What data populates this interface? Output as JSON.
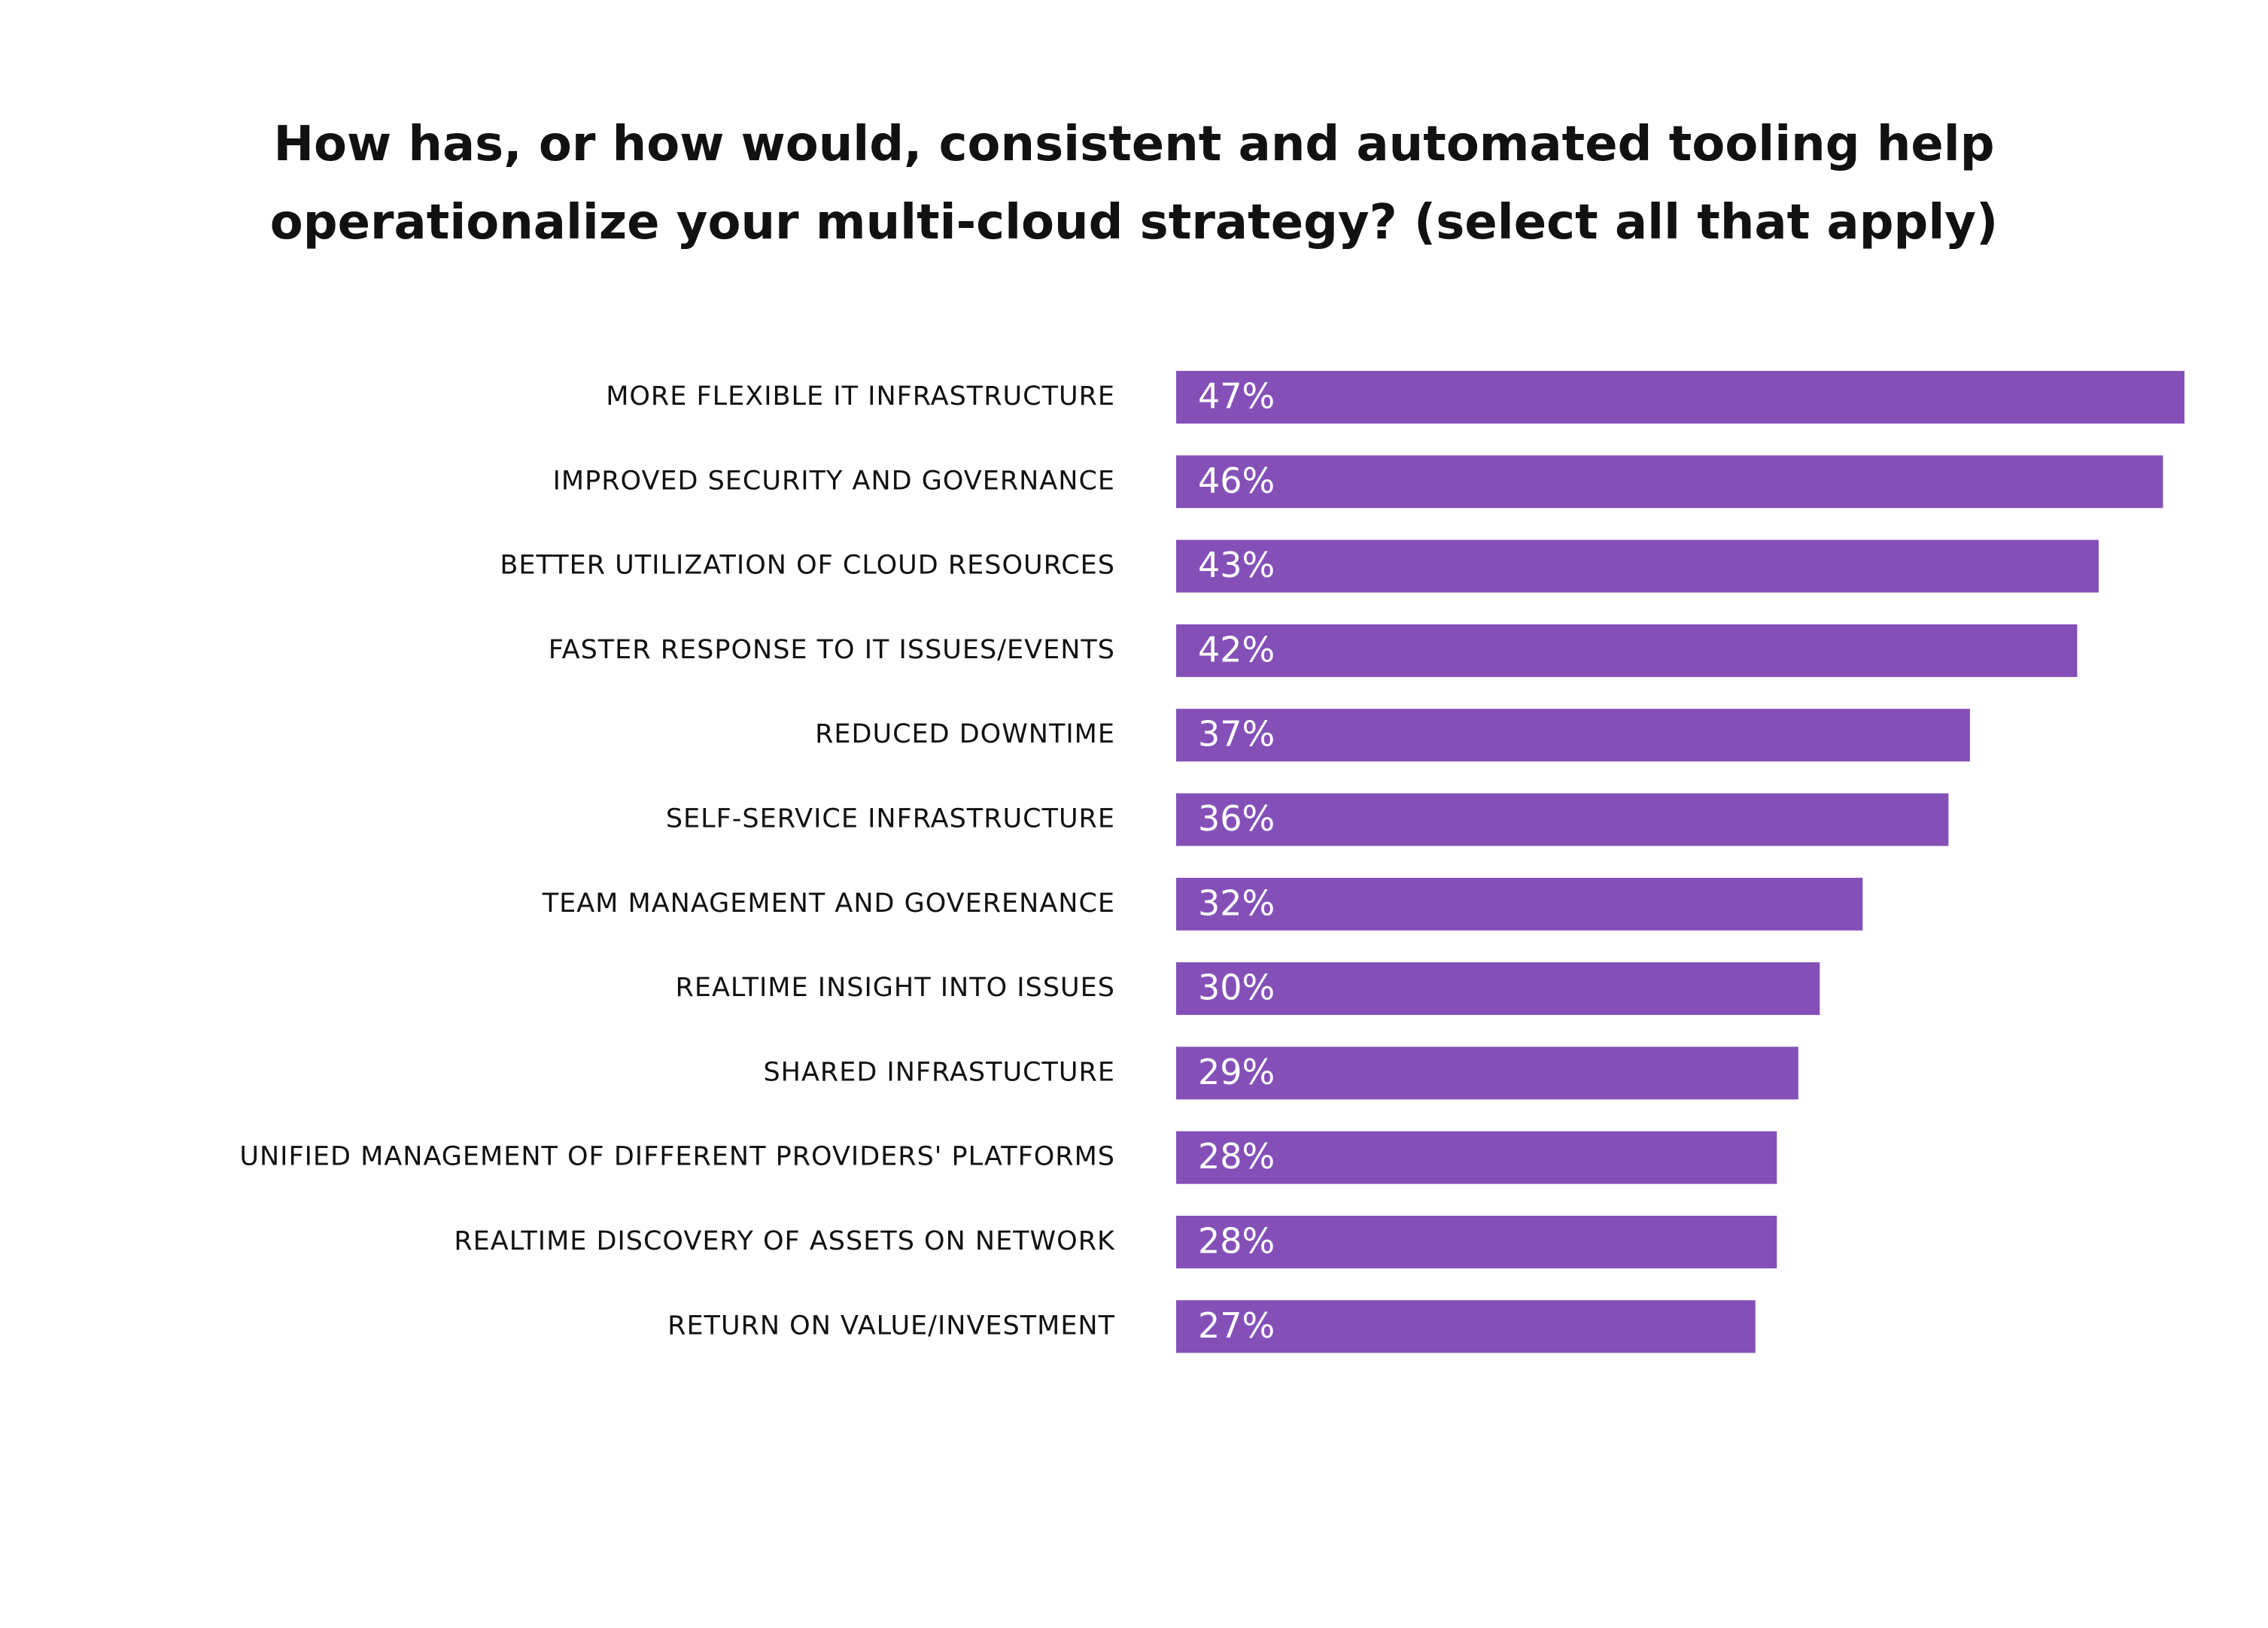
{
  "chart_data": {
    "type": "bar",
    "orientation": "horizontal",
    "title": "How has, or how would, consistent and automated tooling help operationalize your multi-cloud strategy? (select all that apply)",
    "categories": [
      "MORE FLEXIBLE IT INFRASTRUCTURE",
      "IMPROVED SECURITY AND GOVERNANCE",
      "BETTER UTILIZATION OF CLOUD RESOURCES",
      "FASTER RESPONSE TO IT ISSUES/EVENTS",
      "REDUCED DOWNTIME",
      "SELF-SERVICE INFRASTRUCTURE",
      "TEAM MANAGEMENT AND GOVERENANCE",
      "REALTIME INSIGHT INTO ISSUES",
      "SHARED INFRASTUCTURE",
      "UNIFIED MANAGEMENT OF DIFFERENT PROVIDERS' PLATFORMS",
      "REALTIME DISCOVERY OF ASSETS ON NETWORK",
      "RETURN ON VALUE/INVESTMENT"
    ],
    "values": [
      47,
      46,
      43,
      42,
      37,
      36,
      32,
      30,
      29,
      28,
      28,
      27
    ],
    "value_labels": [
      "47%",
      "46%",
      "43%",
      "42%",
      "37%",
      "36%",
      "32%",
      "30%",
      "29%",
      "28%",
      "28%",
      "27%"
    ],
    "color": "#8450b8"
  }
}
